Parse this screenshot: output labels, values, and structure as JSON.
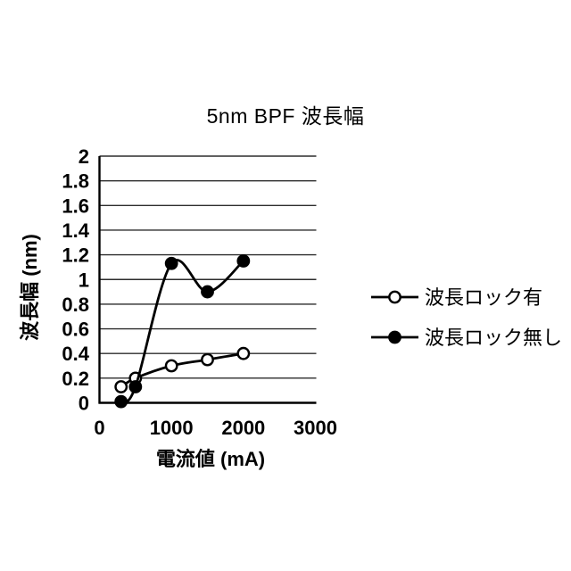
{
  "figure": {
    "background": "#ffffff"
  },
  "chart_data": {
    "type": "line",
    "title": "5nm BPF 波長幅",
    "xlabel": "電流値 (mA)",
    "ylabel": "波長幅 (nm)",
    "xlim": [
      0,
      3000
    ],
    "ylim": [
      0,
      2
    ],
    "xticks": [
      0,
      1000,
      2000,
      3000
    ],
    "xtick_labels": [
      "0",
      "1000",
      "2000",
      "3000"
    ],
    "yticks": [
      0,
      0.2,
      0.4,
      0.6,
      0.8,
      1,
      1.2,
      1.4,
      1.6,
      1.8,
      2
    ],
    "ytick_labels": [
      "0",
      "0.2",
      "0.4",
      "0.6",
      "0.8",
      "1",
      "1.2",
      "1.4",
      "1.6",
      "1.8",
      "2"
    ],
    "grid": "horizontal-only",
    "line_shape": "smoothed",
    "legend_position": "right-of-plot",
    "x": [
      300,
      500,
      1000,
      1500,
      2000
    ],
    "series": [
      {
        "name": "波長ロック有",
        "marker": "open-circle",
        "values": [
          0.13,
          0.2,
          0.3,
          0.35,
          0.4
        ]
      },
      {
        "name": "波長ロック無し",
        "marker": "filled-circle",
        "values": [
          0.01,
          0.13,
          1.13,
          0.9,
          1.15
        ]
      }
    ],
    "colors": {
      "line": "#000000",
      "axis": "#000000",
      "grid": "#2d2d2d",
      "text": "#000000",
      "open_marker_fill": "#ffffff",
      "filled_marker_fill": "#000000"
    }
  }
}
